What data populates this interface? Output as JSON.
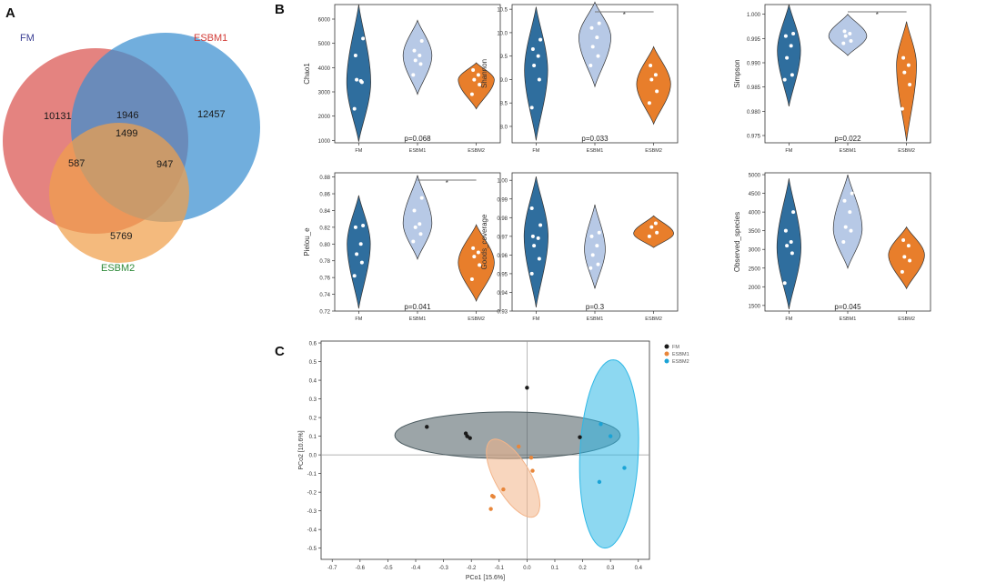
{
  "panels": {
    "a": "A",
    "b": "B",
    "c": "C"
  },
  "chart_data": [
    {
      "type": "venn",
      "panel": "A",
      "sets": [
        {
          "name": "FM",
          "color": "#d9534f",
          "label_color": "#3b3f94"
        },
        {
          "name": "ESBM1",
          "color": "#3a8fd0",
          "label_color": "#d23b36"
        },
        {
          "name": "ESBM2",
          "color": "#f0a04b",
          "label_color": "#2f8a3a"
        }
      ],
      "regions": {
        "FM_only": 10131,
        "ESBM1_only": 12457,
        "ESBM2_only": 5769,
        "FM_ESBM1": 1946,
        "FM_ESBM2": 587,
        "ESBM1_ESBM2": 947,
        "all": 1499
      }
    },
    {
      "type": "violin",
      "panel": "B",
      "groups": [
        "FM",
        "ESBM1",
        "ESBM2"
      ],
      "group_colors": [
        "#2f6e9e",
        "#b7c9e6",
        "#e87e2b"
      ],
      "plots": [
        {
          "metric": "Chao1",
          "ylim": [
            900,
            6600
          ],
          "yticks": [
            1000,
            2000,
            3000,
            4000,
            5000,
            6000
          ],
          "tick_labels": [
            "1000",
            "2000",
            "3000",
            "4000",
            "5000",
            "6000"
          ],
          "p_label": "p=0.068",
          "sig": null,
          "violins": [
            {
              "min": 950,
              "max": 6600,
              "peak": 3400,
              "width": 0.6
            },
            {
              "min": 2900,
              "max": 5950,
              "peak": 4500,
              "width": 0.72
            },
            {
              "min": 2300,
              "max": 4200,
              "peak": 3500,
              "width": 0.9
            }
          ],
          "points": [
            [
              2300,
              3400,
              3500,
              3450,
              4500,
              5200
            ],
            [
              3700,
              4150,
              4300,
              4500,
              4700,
              5100
            ],
            [
              2900,
              3300,
              3500,
              3700,
              3900
            ]
          ]
        },
        {
          "metric": "Shannon",
          "ylim": [
            7.65,
            10.6
          ],
          "yticks": [
            8.0,
            8.5,
            9.0,
            9.5,
            10.0,
            10.5
          ],
          "tick_labels": [
            "8.0",
            "8.5",
            "9.0",
            "9.5",
            "10.0",
            "10.5"
          ],
          "p_label": "p=0.033",
          "sig": [
            1,
            2
          ],
          "violins": [
            {
              "min": 7.7,
              "max": 10.55,
              "peak": 9.2,
              "width": 0.58
            },
            {
              "min": 8.85,
              "max": 10.65,
              "peak": 9.9,
              "width": 0.8
            },
            {
              "min": 8.05,
              "max": 9.7,
              "peak": 8.9,
              "width": 0.85
            }
          ],
          "points": [
            [
              8.4,
              9.0,
              9.3,
              9.5,
              9.65,
              9.85
            ],
            [
              9.3,
              9.5,
              9.7,
              9.9,
              10.1,
              10.2
            ],
            [
              8.5,
              8.75,
              9.0,
              9.1,
              9.3
            ]
          ]
        },
        {
          "metric": "Simpson",
          "ylim": [
            0.9735,
            1.002
          ],
          "yticks": [
            0.975,
            0.98,
            0.985,
            0.99,
            0.995,
            1.0
          ],
          "tick_labels": [
            "0.975",
            "0.980",
            "0.985",
            "0.990",
            "0.995",
            "1.000"
          ],
          "p_label": "p=0.022",
          "sig": [
            1,
            2
          ],
          "violins": [
            {
              "min": 0.981,
              "max": 1.002,
              "peak": 0.9925,
              "width": 0.58
            },
            {
              "min": 0.9915,
              "max": 1.0,
              "peak": 0.9955,
              "width": 0.95
            },
            {
              "min": 0.9738,
              "max": 0.9985,
              "peak": 0.9895,
              "width": 0.5
            }
          ],
          "points": [
            [
              0.9865,
              0.9875,
              0.991,
              0.9935,
              0.9955,
              0.996
            ],
            [
              0.994,
              0.9945,
              0.9955,
              0.996,
              0.9965
            ],
            [
              0.9805,
              0.9855,
              0.988,
              0.9895,
              0.991
            ]
          ]
        },
        {
          "metric": "Pielou_e",
          "ylim": [
            0.72,
            0.885
          ],
          "yticks": [
            0.72,
            0.74,
            0.76,
            0.78,
            0.8,
            0.82,
            0.84,
            0.86,
            0.88
          ],
          "tick_labels": [
            "0.72",
            "0.74",
            "0.76",
            "0.78",
            "0.80",
            "0.82",
            "0.84",
            "0.86",
            "0.88"
          ],
          "p_label": "p=0.041",
          "sig": [
            1,
            2
          ],
          "violins": [
            {
              "min": 0.723,
              "max": 0.858,
              "peak": 0.8,
              "width": 0.58
            },
            {
              "min": 0.782,
              "max": 0.882,
              "peak": 0.825,
              "width": 0.72
            },
            {
              "min": 0.732,
              "max": 0.823,
              "peak": 0.778,
              "width": 0.9
            }
          ],
          "points": [
            [
              0.762,
              0.778,
              0.788,
              0.8,
              0.82,
              0.822
            ],
            [
              0.803,
              0.812,
              0.82,
              0.824,
              0.84,
              0.855
            ],
            [
              0.758,
              0.775,
              0.785,
              0.79,
              0.795
            ]
          ]
        },
        {
          "metric": "Goods_coverage",
          "ylim": [
            0.93,
            1.004
          ],
          "yticks": [
            0.93,
            0.94,
            0.95,
            0.96,
            0.97,
            0.98,
            0.99,
            1.0
          ],
          "tick_labels": [
            "0.93",
            "0.94",
            "0.95",
            "0.96",
            "0.97",
            "0.98",
            "0.99",
            "1.00"
          ],
          "p_label": "p=0.3",
          "sig": null,
          "violins": [
            {
              "min": 0.932,
              "max": 1.002,
              "peak": 0.97,
              "width": 0.6
            },
            {
              "min": 0.942,
              "max": 0.987,
              "peak": 0.963,
              "width": 0.52
            },
            {
              "min": 0.964,
              "max": 0.981,
              "peak": 0.9715,
              "width": 1.0
            }
          ],
          "points": [
            [
              0.95,
              0.958,
              0.965,
              0.969,
              0.97,
              0.976,
              0.985
            ],
            [
              0.953,
              0.955,
              0.96,
              0.965,
              0.97,
              0.972
            ],
            [
              0.97,
              0.972,
              0.975,
              0.977
            ]
          ]
        },
        {
          "metric": "Observed_species",
          "ylim": [
            1350,
            5050
          ],
          "yticks": [
            1500,
            2000,
            2500,
            3000,
            3500,
            4000,
            4500,
            5000
          ],
          "tick_labels": [
            "1500",
            "2000",
            "2500",
            "3000",
            "3500",
            "4000",
            "4500",
            "5000"
          ],
          "p_label": "p=0.045",
          "sig": null,
          "violins": [
            {
              "min": 1400,
              "max": 4900,
              "peak": 3050,
              "width": 0.6
            },
            {
              "min": 2500,
              "max": 5000,
              "peak": 3550,
              "width": 0.72
            },
            {
              "min": 1950,
              "max": 3600,
              "peak": 2850,
              "width": 0.9
            }
          ],
          "points": [
            [
              2100,
              2900,
              3100,
              3200,
              3500,
              4000
            ],
            [
              3200,
              3500,
              3600,
              4000,
              4300,
              4500
            ],
            [
              2400,
              2700,
              2800,
              3100,
              3250
            ]
          ]
        }
      ]
    },
    {
      "type": "scatter",
      "panel": "C",
      "xlabel": "PCo1 [15.6%]",
      "ylabel": "PCo2 [10.6%]",
      "xlim": [
        -0.74,
        0.44
      ],
      "ylim": [
        -0.56,
        0.61
      ],
      "xticks": [
        -0.7,
        -0.6,
        -0.5,
        -0.4,
        -0.3,
        -0.2,
        -0.1,
        0.0,
        0.1,
        0.2,
        0.3,
        0.4
      ],
      "xtick_labels": [
        "-0.7",
        "-0.6",
        "-0.5",
        "-0.4",
        "-0.3",
        "-0.2",
        "-0.1",
        "0.0",
        "0.1",
        "0.2",
        "0.3",
        "0.4"
      ],
      "yticks": [
        -0.5,
        -0.4,
        -0.3,
        -0.2,
        -0.1,
        0.0,
        0.1,
        0.2,
        0.3,
        0.4,
        0.5,
        0.6
      ],
      "ytick_labels": [
        "-0.5",
        "-0.4",
        "-0.3",
        "-0.2",
        "-0.1",
        "0.0",
        "0.1",
        "0.2",
        "0.3",
        "0.4",
        "0.5",
        "0.6"
      ],
      "legend_position": "top-right",
      "series": [
        {
          "name": "FM",
          "color": "#1a1a1a",
          "ellipse_fill": "#4b5b60",
          "ellipse": {
            "cx": -0.07,
            "cy": 0.105,
            "rx": 0.405,
            "ry": 0.125,
            "angle": 0
          },
          "points": [
            [
              -0.36,
              0.15
            ],
            [
              -0.22,
              0.115
            ],
            [
              -0.215,
              0.1
            ],
            [
              -0.205,
              0.09
            ],
            [
              0.0,
              0.36
            ],
            [
              0.19,
              0.095
            ]
          ]
        },
        {
          "name": "ESBM1",
          "color": "#e8863a",
          "ellipse_fill": "#f3b489",
          "ellipse": {
            "cx": -0.05,
            "cy": -0.125,
            "rx": 0.068,
            "ry": 0.22,
            "angle": 0.33
          },
          "points": [
            [
              -0.03,
              0.045
            ],
            [
              0.015,
              -0.015
            ],
            [
              0.02,
              -0.085
            ],
            [
              -0.085,
              -0.185
            ],
            [
              -0.125,
              -0.22
            ],
            [
              -0.12,
              -0.225
            ],
            [
              -0.13,
              -0.29
            ]
          ]
        },
        {
          "name": "ESBM2",
          "color": "#1aa3d6",
          "ellipse_fill": "#2fb8e6",
          "ellipse": {
            "cx": 0.295,
            "cy": 0.005,
            "rx": 0.105,
            "ry": 0.505,
            "angle": -0.03
          },
          "points": [
            [
              0.265,
              0.165
            ],
            [
              0.3,
              0.1
            ],
            [
              0.35,
              -0.07
            ],
            [
              0.26,
              -0.145
            ]
          ]
        }
      ]
    }
  ]
}
